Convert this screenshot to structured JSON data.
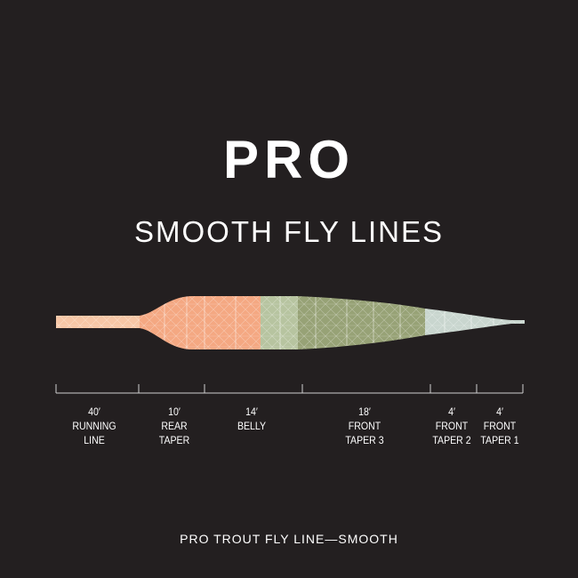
{
  "title": "PRO",
  "subtitle": "SMOOTH FLY LINES",
  "footer": "PRO TROUT FLY LINE—SMOOTH",
  "colors": {
    "background": "#231f20",
    "running_line": "#f6c6a6",
    "rear_taper": "#f4a882",
    "belly": "#b7c4a0",
    "front_taper_3": "#97a276",
    "front_taper_2": "#c9d6cf"
  },
  "sections": [
    {
      "length": "40′",
      "name": [
        "RUNNING",
        "LINE"
      ]
    },
    {
      "length": "10′",
      "name": [
        "REAR",
        "TAPER"
      ]
    },
    {
      "length": "14′",
      "name": [
        "BELLY",
        ""
      ]
    },
    {
      "length": "18′",
      "name": [
        "FRONT",
        "TAPER 3"
      ]
    },
    {
      "length": "4′",
      "name": [
        "FRONT",
        "TAPER 2"
      ]
    },
    {
      "length": "4′",
      "name": [
        "FRONT",
        "TAPER 1"
      ]
    }
  ]
}
